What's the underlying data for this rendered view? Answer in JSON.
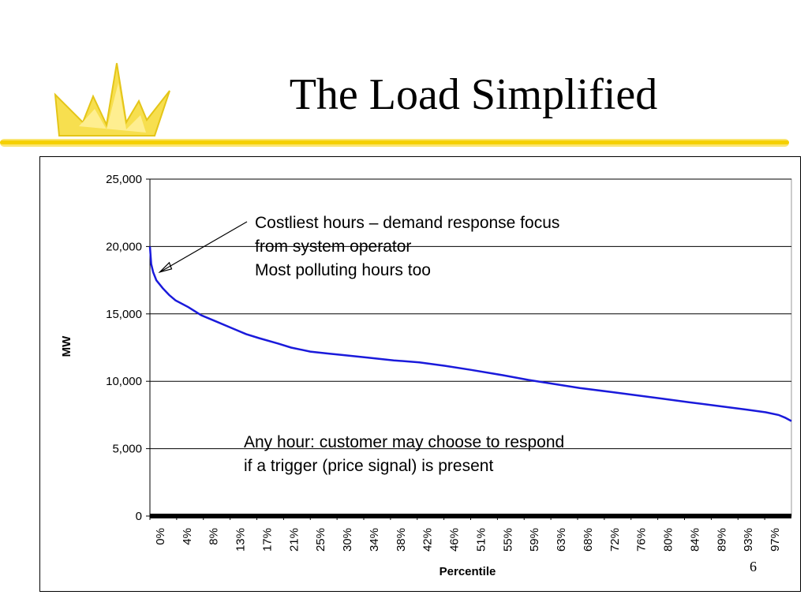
{
  "slide": {
    "title": "The Load Simplified",
    "slide_number": "6"
  },
  "colors": {
    "accent_yellow": "#f5d000",
    "series_blue": "#1a1adb",
    "baseline": "#000000"
  },
  "chart_data": {
    "type": "line",
    "xlabel": "Percentile",
    "ylabel": "MW",
    "ylim": [
      0,
      25000
    ],
    "yticks": [
      0,
      5000,
      10000,
      15000,
      20000,
      25000
    ],
    "ytick_labels": [
      "0",
      "5,000",
      "10,000",
      "15,000",
      "20,000",
      "25,000"
    ],
    "xtick_labels": [
      "0%",
      "4%",
      "8%",
      "13%",
      "17%",
      "21%",
      "25%",
      "30%",
      "34%",
      "38%",
      "42%",
      "46%",
      "51%",
      "55%",
      "59%",
      "63%",
      "68%",
      "72%",
      "76%",
      "80%",
      "84%",
      "89%",
      "93%",
      "97%"
    ],
    "grid": true,
    "legend": "none",
    "series": [
      {
        "x": [
          0,
          0.2,
          0.5,
          1,
          2,
          3,
          4,
          6,
          8,
          10,
          13,
          15,
          17,
          20,
          22,
          25,
          28,
          30,
          34,
          38,
          42,
          46,
          50,
          55,
          59,
          63,
          67,
          72,
          76,
          80,
          84,
          88,
          93,
          96,
          98,
          99,
          100
        ],
        "values": [
          20000,
          18700,
          18100,
          17500,
          16900,
          16400,
          16000,
          15500,
          14900,
          14500,
          13900,
          13500,
          13200,
          12800,
          12500,
          12200,
          12050,
          11950,
          11750,
          11550,
          11400,
          11150,
          10850,
          10450,
          10100,
          9800,
          9500,
          9200,
          8950,
          8700,
          8450,
          8200,
          7900,
          7700,
          7500,
          7300,
          7050
        ]
      }
    ],
    "annotations": [
      {
        "lines": [
          "Costliest hours – demand response focus",
          "from system operator",
          "Most polluting hours too"
        ],
        "arrow_to": {
          "x": 0.8,
          "y": 18100
        }
      },
      {
        "lines": [
          "Any hour: customer may choose to respond",
          "if a trigger (price signal) is present"
        ]
      }
    ]
  }
}
